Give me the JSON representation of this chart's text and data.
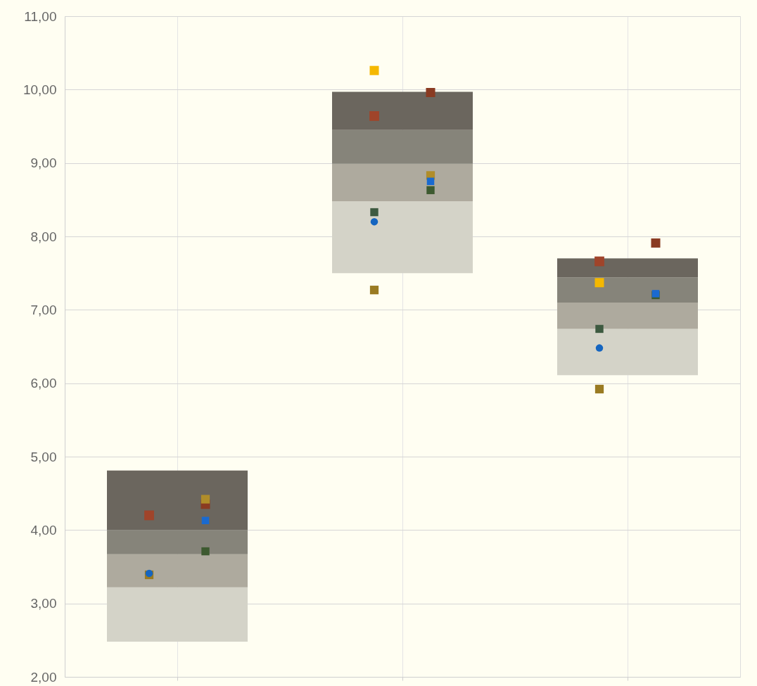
{
  "chart_data": {
    "type": "bar",
    "categories": [
      null,
      null,
      null
    ],
    "ylim": [
      2,
      11
    ],
    "yticks": [
      {
        "value": 2,
        "label": "2,00"
      },
      {
        "value": 3,
        "label": "3,00"
      },
      {
        "value": 4,
        "label": "4,00"
      },
      {
        "value": 5,
        "label": "5,00"
      },
      {
        "value": 6,
        "label": "6,00"
      },
      {
        "value": 7,
        "label": "7,00"
      },
      {
        "value": 8,
        "label": "8,00"
      },
      {
        "value": 9,
        "label": "9,00"
      },
      {
        "value": 10,
        "label": "10,00"
      },
      {
        "value": 11,
        "label": "11,00"
      }
    ],
    "tick_labels": "y",
    "grid": true,
    "series": [
      {
        "color": "#d4d3c8",
        "base": [
          2.48,
          7.5,
          6.11
        ],
        "values": [
          0.74,
          0.98,
          0.63
        ]
      },
      {
        "color": "#aeaa9e",
        "base": [
          3.22,
          8.48,
          6.74
        ],
        "values": [
          0.45,
          0.51,
          0.36
        ]
      },
      {
        "color": "#86847a",
        "base": [
          3.67,
          8.99,
          7.1
        ],
        "values": [
          0.33,
          0.46,
          0.34
        ]
      },
      {
        "color": "#6b665e",
        "base": [
          4.0,
          9.45,
          7.44
        ],
        "values": [
          0.81,
          0.52,
          0.26
        ]
      },
      {
        "type": "scatter",
        "marker": "square",
        "color": "#a0442a",
        "values": [
          4.2,
          9.64,
          7.66
        ]
      },
      {
        "type": "scatter",
        "marker": "square",
        "color": "#f5b800",
        "values": [
          null,
          10.26,
          7.37
        ]
      },
      {
        "type": "scatter",
        "marker": "square",
        "color": "#9a7b22",
        "values": [
          3.39,
          7.27,
          5.92
        ]
      },
      {
        "type": "scatter",
        "marker": "square",
        "color": "#3d5a40",
        "values": [
          null,
          8.33,
          6.74
        ]
      },
      {
        "type": "scatter",
        "marker": "circle",
        "color": "#1565c0",
        "values": [
          3.41,
          8.2,
          6.48
        ]
      },
      {
        "type": "scatter",
        "marker": "square",
        "color": "#8a3b22",
        "values": [
          4.35,
          9.96,
          7.91
        ]
      },
      {
        "type": "scatter",
        "marker": "square",
        "color": "#b08d2a",
        "values": [
          4.42,
          8.83,
          null
        ]
      },
      {
        "type": "scatter",
        "marker": "square",
        "color": "#3d5a30",
        "values": [
          3.71,
          8.63,
          7.2
        ]
      },
      {
        "type": "scatter",
        "marker": "square",
        "color": "#1a6ad0",
        "values": [
          4.13,
          8.75,
          7.22
        ]
      }
    ]
  }
}
